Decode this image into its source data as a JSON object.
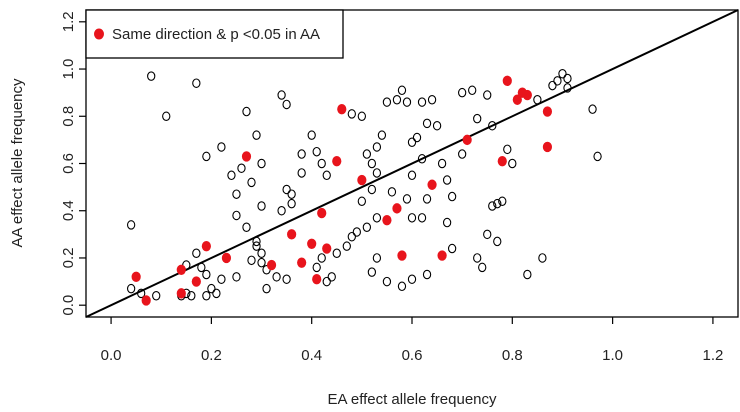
{
  "chart_data": {
    "type": "scatter",
    "xlabel": "EA effect allele frequency",
    "ylabel": "AA effect allele frequency",
    "xlim": [
      -0.05,
      1.25
    ],
    "ylim": [
      -0.05,
      1.25
    ],
    "xticks": [
      "0.0",
      "0.2",
      "0.4",
      "0.6",
      "0.8",
      "1.0",
      "1.2"
    ],
    "yticks": [
      "0.0",
      "0.2",
      "0.4",
      "0.6",
      "0.8",
      "1.0",
      "1.2"
    ],
    "reference_line": {
      "slope": 1,
      "intercept": 0
    },
    "legend": {
      "position": "top-left",
      "label": "Same direction & p <0.05 in AA"
    },
    "grid": false,
    "colors": {
      "highlight": "#e8141c",
      "other": "#000000",
      "line": "#000000"
    },
    "series": [
      {
        "name": "Same direction & p <0.05 in AA",
        "marker": "filled",
        "points": [
          [
            0.79,
            0.95
          ],
          [
            0.81,
            0.87
          ],
          [
            0.83,
            0.89
          ],
          [
            0.82,
            0.9
          ],
          [
            0.87,
            0.82
          ],
          [
            0.46,
            0.83
          ],
          [
            0.45,
            0.61
          ],
          [
            0.71,
            0.7
          ],
          [
            0.78,
            0.61
          ],
          [
            0.87,
            0.67
          ],
          [
            0.27,
            0.63
          ],
          [
            0.5,
            0.53
          ],
          [
            0.64,
            0.51
          ],
          [
            0.57,
            0.41
          ],
          [
            0.55,
            0.36
          ],
          [
            0.42,
            0.39
          ],
          [
            0.36,
            0.3
          ],
          [
            0.4,
            0.26
          ],
          [
            0.43,
            0.24
          ],
          [
            0.58,
            0.21
          ],
          [
            0.66,
            0.21
          ],
          [
            0.19,
            0.25
          ],
          [
            0.23,
            0.2
          ],
          [
            0.32,
            0.17
          ],
          [
            0.38,
            0.18
          ],
          [
            0.14,
            0.15
          ],
          [
            0.05,
            0.12
          ],
          [
            0.17,
            0.1
          ],
          [
            0.41,
            0.11
          ],
          [
            0.14,
            0.05
          ],
          [
            0.07,
            0.02
          ]
        ]
      },
      {
        "name": "",
        "marker": "open",
        "points": [
          [
            0.08,
            0.97
          ],
          [
            0.17,
            0.94
          ],
          [
            0.11,
            0.8
          ],
          [
            0.19,
            0.63
          ],
          [
            0.22,
            0.67
          ],
          [
            0.27,
            0.82
          ],
          [
            0.29,
            0.72
          ],
          [
            0.34,
            0.89
          ],
          [
            0.35,
            0.85
          ],
          [
            0.3,
            0.6
          ],
          [
            0.24,
            0.55
          ],
          [
            0.26,
            0.58
          ],
          [
            0.28,
            0.52
          ],
          [
            0.35,
            0.49
          ],
          [
            0.36,
            0.47
          ],
          [
            0.38,
            0.64
          ],
          [
            0.4,
            0.72
          ],
          [
            0.41,
            0.65
          ],
          [
            0.42,
            0.6
          ],
          [
            0.43,
            0.55
          ],
          [
            0.38,
            0.56
          ],
          [
            0.36,
            0.43
          ],
          [
            0.34,
            0.4
          ],
          [
            0.3,
            0.42
          ],
          [
            0.25,
            0.47
          ],
          [
            0.25,
            0.38
          ],
          [
            0.27,
            0.33
          ],
          [
            0.29,
            0.27
          ],
          [
            0.29,
            0.25
          ],
          [
            0.3,
            0.22
          ],
          [
            0.3,
            0.18
          ],
          [
            0.31,
            0.15
          ],
          [
            0.28,
            0.19
          ],
          [
            0.33,
            0.12
          ],
          [
            0.31,
            0.07
          ],
          [
            0.35,
            0.11
          ],
          [
            0.41,
            0.16
          ],
          [
            0.42,
            0.2
          ],
          [
            0.43,
            0.1
          ],
          [
            0.45,
            0.22
          ],
          [
            0.47,
            0.25
          ],
          [
            0.48,
            0.29
          ],
          [
            0.49,
            0.31
          ],
          [
            0.51,
            0.33
          ],
          [
            0.53,
            0.37
          ],
          [
            0.5,
            0.44
          ],
          [
            0.52,
            0.49
          ],
          [
            0.53,
            0.56
          ],
          [
            0.52,
            0.6
          ],
          [
            0.51,
            0.64
          ],
          [
            0.53,
            0.67
          ],
          [
            0.54,
            0.72
          ],
          [
            0.5,
            0.8
          ],
          [
            0.48,
            0.81
          ],
          [
            0.55,
            0.86
          ],
          [
            0.57,
            0.87
          ],
          [
            0.58,
            0.91
          ],
          [
            0.59,
            0.86
          ],
          [
            0.62,
            0.86
          ],
          [
            0.64,
            0.87
          ],
          [
            0.63,
            0.77
          ],
          [
            0.61,
            0.71
          ],
          [
            0.6,
            0.69
          ],
          [
            0.62,
            0.62
          ],
          [
            0.6,
            0.55
          ],
          [
            0.56,
            0.48
          ],
          [
            0.59,
            0.45
          ],
          [
            0.6,
            0.37
          ],
          [
            0.62,
            0.37
          ],
          [
            0.63,
            0.45
          ],
          [
            0.66,
            0.6
          ],
          [
            0.67,
            0.53
          ],
          [
            0.68,
            0.46
          ],
          [
            0.67,
            0.35
          ],
          [
            0.68,
            0.24
          ],
          [
            0.7,
            0.9
          ],
          [
            0.72,
            0.91
          ],
          [
            0.73,
            0.79
          ],
          [
            0.75,
            0.89
          ],
          [
            0.76,
            0.76
          ],
          [
            0.76,
            0.42
          ],
          [
            0.77,
            0.43
          ],
          [
            0.78,
            0.44
          ],
          [
            0.75,
            0.3
          ],
          [
            0.77,
            0.27
          ],
          [
            0.73,
            0.2
          ],
          [
            0.74,
            0.16
          ],
          [
            0.63,
            0.13
          ],
          [
            0.6,
            0.11
          ],
          [
            0.58,
            0.08
          ],
          [
            0.55,
            0.1
          ],
          [
            0.53,
            0.2
          ],
          [
            0.52,
            0.14
          ],
          [
            0.44,
            0.12
          ],
          [
            0.25,
            0.12
          ],
          [
            0.22,
            0.11
          ],
          [
            0.2,
            0.07
          ],
          [
            0.21,
            0.05
          ],
          [
            0.19,
            0.04
          ],
          [
            0.16,
            0.04
          ],
          [
            0.15,
            0.05
          ],
          [
            0.14,
            0.04
          ],
          [
            0.09,
            0.04
          ],
          [
            0.07,
            0.02
          ],
          [
            0.06,
            0.05
          ],
          [
            0.04,
            0.07
          ],
          [
            0.04,
            0.34
          ],
          [
            0.17,
            0.22
          ],
          [
            0.18,
            0.16
          ],
          [
            0.19,
            0.13
          ],
          [
            0.15,
            0.17
          ],
          [
            0.85,
            0.87
          ],
          [
            0.88,
            0.93
          ],
          [
            0.89,
            0.95
          ],
          [
            0.91,
            0.96
          ],
          [
            0.9,
            0.98
          ],
          [
            0.91,
            0.92
          ],
          [
            0.96,
            0.83
          ],
          [
            0.97,
            0.63
          ],
          [
            0.86,
            0.2
          ],
          [
            0.83,
            0.13
          ],
          [
            0.79,
            0.66
          ],
          [
            0.8,
            0.6
          ],
          [
            0.7,
            0.64
          ],
          [
            0.65,
            0.76
          ]
        ]
      }
    ]
  }
}
